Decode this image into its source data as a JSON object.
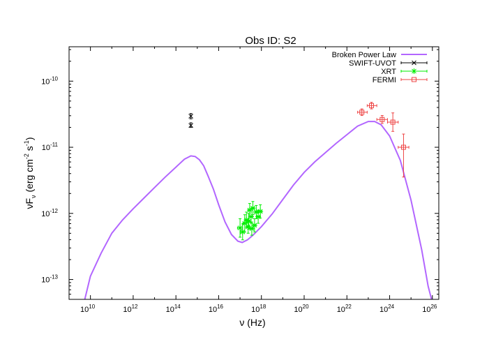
{
  "chart_data": {
    "type": "scatter",
    "title": "Obs ID: S2",
    "xlabel": "ν (Hz)",
    "ylabel": "νF_ν (erg cm^-2 s^-1)",
    "xscale": "log",
    "yscale": "log",
    "xlim_log10": [
      9.0,
      26.3
    ],
    "ylim_log10": [
      -13.3,
      -9.48
    ],
    "x_ticks_log10": [
      10,
      12,
      14,
      16,
      18,
      20,
      22,
      24,
      26
    ],
    "y_ticks_log10": [
      -13,
      -12,
      -11,
      -10
    ],
    "legend_position": "top-right",
    "series": [
      {
        "name": "Broken Power Law",
        "kind": "line",
        "color": "#b266ff",
        "points": [
          [
            9.7,
            -13.35
          ],
          [
            10.0,
            -12.95
          ],
          [
            10.5,
            -12.6
          ],
          [
            11.0,
            -12.3
          ],
          [
            11.5,
            -12.1
          ],
          [
            12.0,
            -11.93
          ],
          [
            12.5,
            -11.77
          ],
          [
            13.0,
            -11.61
          ],
          [
            13.5,
            -11.45
          ],
          [
            14.0,
            -11.3
          ],
          [
            14.4,
            -11.18
          ],
          [
            14.7,
            -11.13
          ],
          [
            14.9,
            -11.14
          ],
          [
            15.1,
            -11.19
          ],
          [
            15.3,
            -11.28
          ],
          [
            15.5,
            -11.43
          ],
          [
            15.75,
            -11.63
          ],
          [
            16.0,
            -11.87
          ],
          [
            16.3,
            -12.13
          ],
          [
            16.6,
            -12.32
          ],
          [
            16.9,
            -12.42
          ],
          [
            17.1,
            -12.44
          ],
          [
            17.35,
            -12.4
          ],
          [
            17.6,
            -12.33
          ],
          [
            18.0,
            -12.2
          ],
          [
            18.5,
            -12.01
          ],
          [
            19.0,
            -11.79
          ],
          [
            19.5,
            -11.57
          ],
          [
            20.0,
            -11.38
          ],
          [
            20.5,
            -11.22
          ],
          [
            21.0,
            -11.08
          ],
          [
            21.5,
            -10.94
          ],
          [
            22.0,
            -10.81
          ],
          [
            22.5,
            -10.68
          ],
          [
            23.0,
            -10.61
          ],
          [
            23.3,
            -10.61
          ],
          [
            23.6,
            -10.66
          ],
          [
            24.0,
            -10.83
          ],
          [
            24.5,
            -11.2
          ],
          [
            25.0,
            -11.8
          ],
          [
            25.5,
            -12.55
          ],
          [
            25.8,
            -13.1
          ],
          [
            26.0,
            -13.35
          ]
        ]
      },
      {
        "name": "SWIFT-UVOT",
        "kind": "points",
        "marker": "x",
        "color": "#000000",
        "points": [
          {
            "x": 14.7,
            "y": -10.53,
            "ylo": -10.57,
            "yhi": -10.49
          },
          {
            "x": 14.7,
            "y": -10.67,
            "ylo": -10.7,
            "yhi": -10.63
          }
        ]
      },
      {
        "name": "XRT",
        "kind": "points",
        "marker": "star",
        "color": "#00ee00",
        "points": [
          {
            "x": 17.0,
            "y": -12.22,
            "ylo": -12.36,
            "yhi": -12.08,
            "xlo": 16.88,
            "xhi": 17.12
          },
          {
            "x": 17.12,
            "y": -12.28,
            "ylo": -12.4,
            "yhi": -12.16,
            "xlo": 17.02,
            "xhi": 17.22
          },
          {
            "x": 17.22,
            "y": -12.15,
            "ylo": -12.28,
            "yhi": -12.02,
            "xlo": 17.14,
            "xhi": 17.3
          },
          {
            "x": 17.3,
            "y": -12.1,
            "ylo": -12.22,
            "yhi": -11.98,
            "xlo": 17.22,
            "xhi": 17.38
          },
          {
            "x": 17.38,
            "y": -12.2,
            "ylo": -12.3,
            "yhi": -12.1,
            "xlo": 17.31,
            "xhi": 17.45
          },
          {
            "x": 17.45,
            "y": -11.95,
            "ylo": -12.05,
            "yhi": -11.85,
            "xlo": 17.38,
            "xhi": 17.52
          },
          {
            "x": 17.52,
            "y": -12.05,
            "ylo": -12.15,
            "yhi": -11.95,
            "xlo": 17.45,
            "xhi": 17.59
          },
          {
            "x": 17.6,
            "y": -11.92,
            "ylo": -12.02,
            "yhi": -11.82,
            "xlo": 17.53,
            "xhi": 17.67
          },
          {
            "x": 17.68,
            "y": -12.18,
            "ylo": -12.28,
            "yhi": -12.08,
            "xlo": 17.61,
            "xhi": 17.75
          },
          {
            "x": 17.76,
            "y": -11.98,
            "ylo": -12.08,
            "yhi": -11.88,
            "xlo": 17.69,
            "xhi": 17.83
          },
          {
            "x": 17.85,
            "y": -12.05,
            "ylo": -12.15,
            "yhi": -11.95,
            "xlo": 17.78,
            "xhi": 17.92
          },
          {
            "x": 17.95,
            "y": -11.97,
            "ylo": -12.07,
            "yhi": -11.87,
            "xlo": 17.88,
            "xhi": 18.02
          },
          {
            "x": 17.4,
            "y": -12.12,
            "ylo": -12.24,
            "yhi": -12.0,
            "xlo": 17.33,
            "xhi": 17.47
          },
          {
            "x": 17.55,
            "y": -12.23,
            "ylo": -12.33,
            "yhi": -12.13,
            "xlo": 17.48,
            "xhi": 17.62
          }
        ]
      },
      {
        "name": "FERMI",
        "kind": "points",
        "marker": "square",
        "color": "#ee4444",
        "points": [
          {
            "x": 22.7,
            "y": -10.47,
            "ylo": -10.52,
            "yhi": -10.42,
            "xlo": 22.5,
            "xhi": 22.95
          },
          {
            "x": 23.15,
            "y": -10.37,
            "ylo": -10.42,
            "yhi": -10.32,
            "xlo": 22.95,
            "xhi": 23.4
          },
          {
            "x": 23.65,
            "y": -10.58,
            "ylo": -10.64,
            "yhi": -10.52,
            "xlo": 23.4,
            "xhi": 23.9
          },
          {
            "x": 24.15,
            "y": -10.62,
            "ylo": -10.76,
            "yhi": -10.48,
            "xlo": 23.9,
            "xhi": 24.4
          },
          {
            "x": 24.65,
            "y": -11.0,
            "ylo": -11.45,
            "yhi": -10.8,
            "xlo": 24.4,
            "xhi": 24.9
          }
        ]
      }
    ]
  }
}
